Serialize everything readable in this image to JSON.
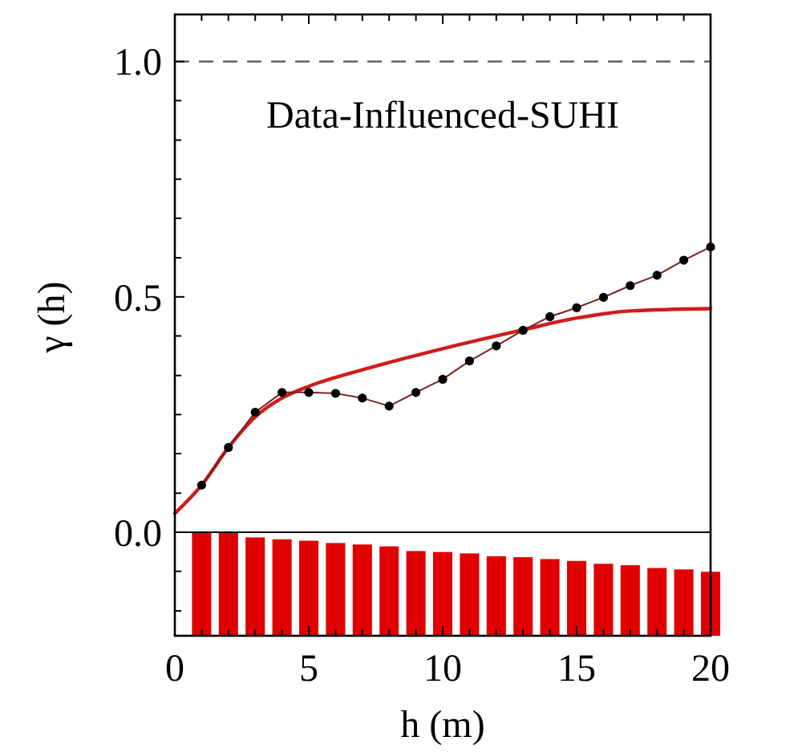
{
  "chart_data": {
    "type": "line",
    "title": "Data-Influenced-SUHI",
    "xlabel": "h (m)",
    "ylabel": "γ (h)",
    "xlim": [
      0,
      20
    ],
    "ylim": [
      -0.22,
      1.1
    ],
    "xticks": [
      0,
      {
        "value": 1,
        "label": null
      },
      {
        "value": 2,
        "label": null
      },
      {
        "value": 3,
        "label": null
      },
      {
        "value": 4,
        "label": null
      },
      5,
      {
        "value": 6,
        "label": null
      },
      {
        "value": 7,
        "label": null
      },
      {
        "value": 8,
        "label": null
      },
      {
        "value": 9,
        "label": null
      },
      10,
      {
        "value": 11,
        "label": null
      },
      {
        "value": 12,
        "label": null
      },
      {
        "value": 13,
        "label": null
      },
      {
        "value": 14,
        "label": null
      },
      15,
      {
        "value": 16,
        "label": null
      },
      {
        "value": 17,
        "label": null
      },
      {
        "value": 18,
        "label": null
      },
      {
        "value": 19,
        "label": null
      },
      20
    ],
    "yticks": [
      {
        "value": -0.167,
        "label": null
      },
      {
        "value": -0.083,
        "label": null
      },
      {
        "value": 0,
        "label": "0.0"
      },
      {
        "value": 0.083,
        "label": null
      },
      {
        "value": 0.167,
        "label": null
      },
      {
        "value": 0.25,
        "label": null
      },
      {
        "value": 0.333,
        "label": null
      },
      {
        "value": 0.417,
        "label": null
      },
      {
        "value": 0.5,
        "label": "0.5"
      },
      {
        "value": 0.583,
        "label": null
      },
      {
        "value": 0.667,
        "label": null
      },
      {
        "value": 0.75,
        "label": null
      },
      {
        "value": 0.833,
        "label": null
      },
      {
        "value": 0.917,
        "label": null
      },
      {
        "value": 1,
        "label": "1.0"
      }
    ],
    "grid": false,
    "ref_lines": [
      {
        "axis": "y",
        "value": 1,
        "color": "#555555",
        "line_style": "dashed"
      }
    ],
    "series": [
      {
        "type": "bar",
        "color": "#e00000",
        "x": [
          1,
          2,
          3,
          4,
          5,
          6,
          7,
          8,
          9,
          10,
          11,
          12,
          13,
          14,
          15,
          16,
          17,
          18,
          19,
          20
        ],
        "base": [
          -0.22,
          -0.22,
          -0.22,
          -0.22,
          -0.22,
          -0.22,
          -0.22,
          -0.22,
          -0.22,
          -0.22,
          -0.22,
          -0.22,
          -0.22,
          -0.22,
          -0.22,
          -0.22,
          -0.22,
          -0.22,
          -0.22,
          -0.22
        ],
        "values": [
          0.22,
          0.22,
          0.209,
          0.205,
          0.202,
          0.197,
          0.194,
          0.19,
          0.18,
          0.178,
          0.175,
          0.169,
          0.167,
          0.163,
          0.159,
          0.153,
          0.15,
          0.144,
          0.141,
          0.136
        ]
      },
      {
        "color": "#000000",
        "marker": "circle",
        "line_style": "solid",
        "x": [
          1,
          2,
          3,
          4,
          5,
          6,
          7,
          8,
          9,
          10,
          11,
          12,
          13,
          14,
          15,
          16,
          17,
          18,
          19,
          20
        ],
        "values": [
          0.1,
          0.18,
          0.255,
          0.297,
          0.297,
          0.295,
          0.285,
          0.268,
          0.297,
          0.325,
          0.364,
          0.396,
          0.429,
          0.458,
          0.477,
          0.499,
          0.524,
          0.546,
          0.578,
          0.606
        ]
      },
      {
        "color": "#d01c1c",
        "marker": "none",
        "line_style": "solid",
        "x": [
          0,
          1,
          2,
          3,
          4,
          5,
          7,
          10,
          13,
          15,
          17,
          20
        ],
        "values": [
          0.04,
          0.1,
          0.18,
          0.245,
          0.285,
          0.31,
          0.345,
          0.39,
          0.43,
          0.455,
          0.47,
          0.475
        ]
      }
    ]
  }
}
